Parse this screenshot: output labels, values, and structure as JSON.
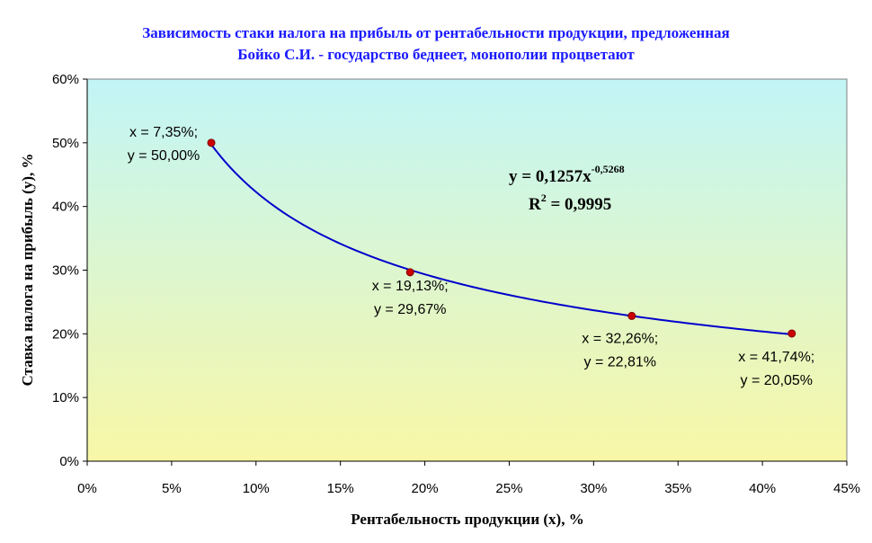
{
  "chart_data": {
    "type": "scatter",
    "title_line1": "Зависимость стаки налога на прибыль от рентабельности продукции, предложенная",
    "title_line2": "Бойко С.И. - государство беднеет, монополии процветают",
    "xlabel": "Рентабельность продукции (x), %",
    "ylabel": "Ставка налога на прибыль (y), %",
    "xlim": [
      0,
      0.45
    ],
    "ylim": [
      0,
      0.6
    ],
    "x_ticks": [
      0,
      0.05,
      0.1,
      0.15,
      0.2,
      0.25,
      0.3,
      0.35,
      0.4,
      0.45
    ],
    "x_tick_labels": [
      "0%",
      "5%",
      "10%",
      "15%",
      "20%",
      "25%",
      "30%",
      "35%",
      "40%",
      "45%"
    ],
    "y_ticks": [
      0,
      0.1,
      0.2,
      0.3,
      0.4,
      0.5,
      0.6
    ],
    "y_tick_labels": [
      "0%",
      "10%",
      "20%",
      "30%",
      "40%",
      "50%",
      "60%"
    ],
    "grid": false,
    "legend": "none",
    "series": [
      {
        "x": [
          0.0735,
          0.1913,
          0.3226,
          0.4174
        ],
        "y": [
          0.5,
          0.2967,
          0.2281,
          0.2005
        ],
        "marker_color": "#cc0000",
        "point_labels": [
          [
            "x = 7,35%;",
            "y = 50,00%"
          ],
          [
            "x = 19,13%;",
            "y = 29,67%"
          ],
          [
            "x = 32,26%;",
            "y = 22,81%"
          ],
          [
            "x = 41,74%;",
            "y = 20,05%"
          ]
        ]
      }
    ],
    "trendline": {
      "type": "power",
      "coef": 0.1257,
      "exponent": -0.5268,
      "color": "#0000cc",
      "equation_base": "y = 0,1257x",
      "equation_exponent": "-0,5268",
      "r2_prefix": "R",
      "r2_power": "2",
      "r2_value": " = 0,9995"
    },
    "colors": {
      "plot_gradient_top": "#c2f5f7",
      "plot_gradient_bottom": "#f8f7a6",
      "title": "#1a1aff"
    }
  }
}
